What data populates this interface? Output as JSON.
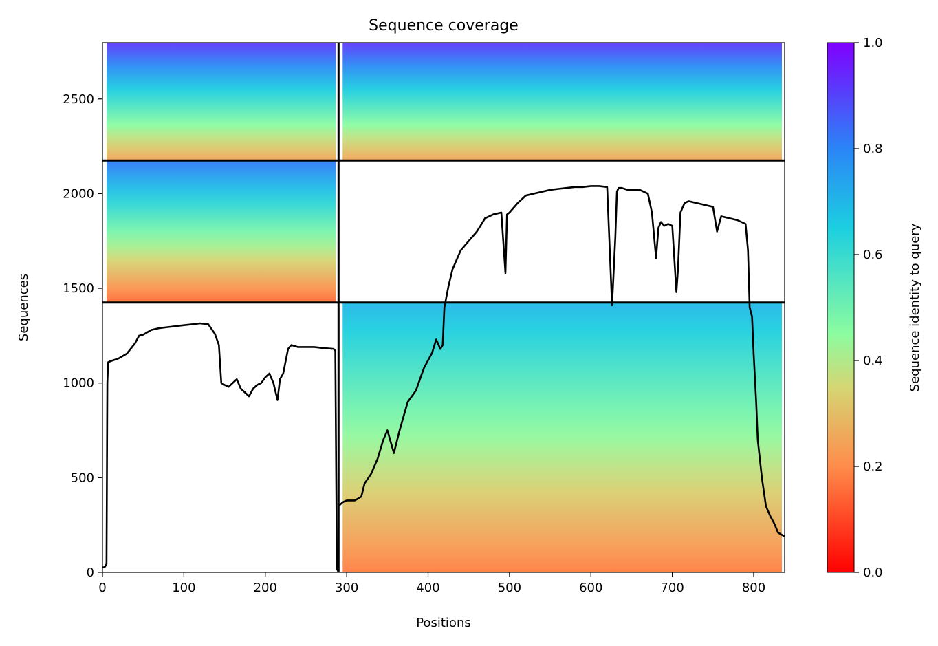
{
  "chart_data": {
    "type": "heatmap",
    "title": "Sequence coverage",
    "xlabel": "Positions",
    "ylabel": "Sequences",
    "xlim": [
      0,
      838
    ],
    "ylim": [
      0,
      2797
    ],
    "x_ticks": [
      0,
      100,
      200,
      300,
      400,
      500,
      600,
      700,
      800
    ],
    "y_ticks": [
      0,
      500,
      1000,
      1500,
      2000,
      2500
    ],
    "colorbar": {
      "label": "Sequence identity to query",
      "colormap": "rainbow_r",
      "range": [
        0.0,
        1.0
      ],
      "ticks": [
        "0.0",
        "0.2",
        "0.4",
        "0.6",
        "0.8",
        "1.0"
      ],
      "colors": [
        "#ff0000",
        "#ff8c4a",
        "#d5d674",
        "#8cfca0",
        "#1ccfe0",
        "#2a85f7",
        "#8000ff"
      ]
    },
    "chain_boundaries": {
      "x": [
        290
      ],
      "y": [
        1425,
        2175
      ]
    },
    "blocks": [
      {
        "x": [
          0,
          290
        ],
        "y": [
          2175,
          2797
        ],
        "identity_top": 0.92,
        "identity_bottom": 0.25
      },
      {
        "x": [
          290,
          838
        ],
        "y": [
          2175,
          2797
        ],
        "identity_top": 0.92,
        "identity_bottom": 0.25
      },
      {
        "x": [
          0,
          290
        ],
        "y": [
          1425,
          2175
        ],
        "identity_top": 0.82,
        "identity_bottom": 0.15
      },
      {
        "x": [
          290,
          838
        ],
        "y": [
          0,
          1425
        ],
        "identity_top": 0.7,
        "identity_bottom": 0.18
      }
    ],
    "coverage_series": [
      {
        "x": [
          0,
          3,
          5,
          6,
          7,
          10,
          20,
          30,
          40,
          45,
          50,
          60,
          70,
          80,
          90,
          100,
          110,
          120,
          130,
          138,
          143,
          146,
          150,
          155,
          160,
          165,
          170,
          175,
          180,
          185,
          190,
          195,
          200,
          205,
          210,
          215,
          218,
          222,
          228,
          232,
          240,
          250,
          260,
          270,
          284,
          286,
          288,
          290
        ],
        "y": [
          25,
          30,
          45,
          1000,
          1110,
          1115,
          1130,
          1155,
          1210,
          1250,
          1255,
          1280,
          1290,
          1295,
          1300,
          1305,
          1310,
          1315,
          1310,
          1260,
          1200,
          1000,
          990,
          980,
          1000,
          1020,
          970,
          950,
          930,
          970,
          990,
          1000,
          1030,
          1050,
          1000,
          910,
          1020,
          1050,
          1180,
          1200,
          1190,
          1190,
          1190,
          1185,
          1180,
          1170,
          20,
          0
        ]
      },
      {
        "x": [
          290,
          295,
          300,
          310,
          318,
          322,
          330,
          338,
          345,
          350,
          358,
          365,
          375,
          385,
          395,
          405,
          410,
          415,
          418,
          420,
          425,
          430,
          440,
          450,
          460,
          470,
          480,
          490,
          495,
          497,
          500,
          510,
          520,
          530,
          540,
          550,
          560,
          570,
          580,
          590,
          600,
          610,
          620,
          626,
          630,
          632,
          634,
          638,
          645,
          650,
          660,
          670,
          675,
          680,
          683,
          686,
          690,
          695,
          700,
          705,
          707,
          710,
          715,
          720,
          730,
          740,
          750,
          755,
          760,
          770,
          780,
          790,
          793,
          795,
          798,
          800,
          803,
          805,
          810,
          815,
          820,
          825,
          830,
          838
        ],
        "y": [
          350,
          370,
          380,
          380,
          400,
          470,
          520,
          600,
          700,
          750,
          630,
          750,
          900,
          960,
          1080,
          1160,
          1230,
          1180,
          1200,
          1400,
          1510,
          1600,
          1700,
          1750,
          1800,
          1870,
          1890,
          1900,
          1580,
          1890,
          1900,
          1950,
          1990,
          2000,
          2010,
          2020,
          2025,
          2030,
          2035,
          2035,
          2040,
          2040,
          2035,
          1410,
          1770,
          2010,
          2030,
          2030,
          2020,
          2020,
          2020,
          2000,
          1900,
          1660,
          1820,
          1850,
          1830,
          1840,
          1830,
          1480,
          1600,
          1900,
          1950,
          1960,
          1950,
          1940,
          1930,
          1800,
          1880,
          1870,
          1860,
          1840,
          1700,
          1400,
          1350,
          1150,
          900,
          700,
          500,
          350,
          300,
          260,
          210,
          190
        ]
      }
    ]
  }
}
